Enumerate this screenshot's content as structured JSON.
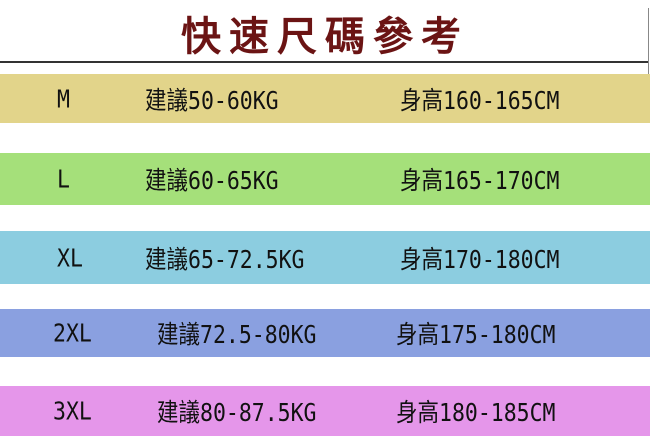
{
  "title": "快速尺碼參考",
  "rows": [
    {
      "size": "M",
      "weight": "建議50-60KG",
      "height": "身高160-165CM",
      "color": "#e2d48a"
    },
    {
      "size": "L",
      "weight": "建議60-65KG",
      "height": "身高165-170CM",
      "color": "#a5e07a"
    },
    {
      "size": "XL",
      "weight": "建議65-72.5KG",
      "height": "身高170-180CM",
      "color": "#8ccde0"
    },
    {
      "size": "2XL",
      "weight": "建議72.5-80KG",
      "height": "身高175-180CM",
      "color": "#8aa0e0"
    },
    {
      "size": "3XL",
      "weight": "建議80-87.5KG",
      "height": "身高180-185CM",
      "color": "#e596ea"
    }
  ]
}
